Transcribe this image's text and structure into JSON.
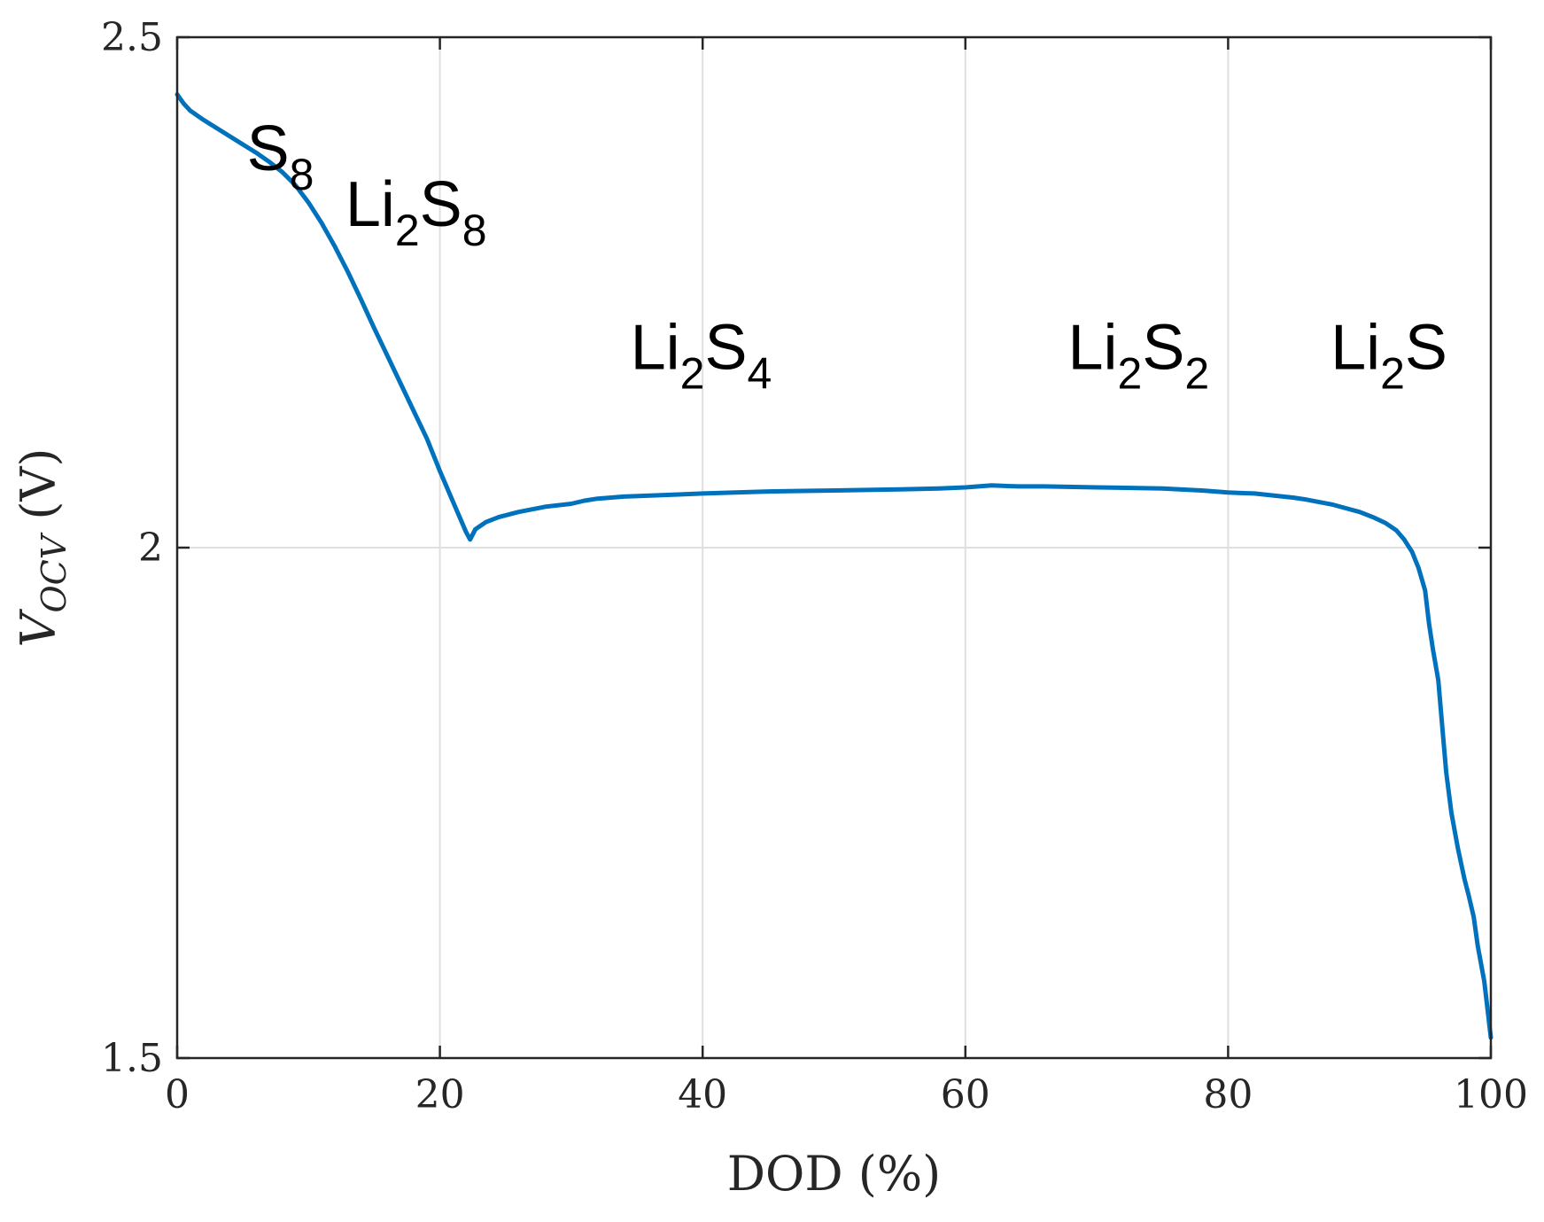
{
  "chart_data": {
    "type": "line",
    "title": "",
    "xlabel": "DOD (%)",
    "ylabel": {
      "main": "V",
      "subscript": "OCV",
      "unit": "(V)"
    },
    "xlim": [
      0,
      100
    ],
    "ylim": [
      1.5,
      2.5
    ],
    "x_ticks": [
      0,
      20,
      40,
      60,
      80,
      100
    ],
    "x_tick_labels": [
      "0",
      "20",
      "40",
      "60",
      "80",
      "100"
    ],
    "y_ticks": [
      1.5,
      2,
      2.5
    ],
    "y_tick_labels": [
      "1.5",
      "2",
      "2.5"
    ],
    "grid": true,
    "line_color": "#0072BD",
    "series": [
      {
        "x": [
          0,
          0.5,
          1,
          2,
          3,
          4,
          5,
          6,
          7,
          8,
          9,
          10,
          11,
          12,
          13,
          14,
          15,
          16,
          17,
          18,
          19,
          20,
          20.5,
          21,
          21.5,
          22,
          22.3,
          22.7,
          23.5,
          24.5,
          26,
          28,
          30,
          31,
          32,
          34,
          36,
          38,
          40,
          45,
          50,
          55,
          58,
          60,
          62,
          64,
          66,
          70,
          75,
          78,
          80,
          82,
          85,
          86,
          88,
          90,
          91,
          92,
          92.8,
          93.4,
          94,
          94.5,
          95,
          95.3,
          95.6,
          96,
          96.3,
          96.6,
          97,
          97.5,
          98,
          98.3,
          98.7,
          99,
          99.5,
          100
        ],
        "y": [
          2.444,
          2.435,
          2.428,
          2.419,
          2.411,
          2.403,
          2.395,
          2.387,
          2.378,
          2.368,
          2.355,
          2.338,
          2.318,
          2.295,
          2.27,
          2.243,
          2.215,
          2.188,
          2.161,
          2.134,
          2.107,
          2.075,
          2.06,
          2.045,
          2.03,
          2.015,
          2.008,
          2.018,
          2.025,
          2.03,
          2.035,
          2.04,
          2.043,
          2.046,
          2.048,
          2.05,
          2.051,
          2.052,
          2.053,
          2.055,
          2.056,
          2.057,
          2.058,
          2.059,
          2.061,
          2.06,
          2.06,
          2.059,
          2.058,
          2.056,
          2.054,
          2.053,
          2.049,
          2.047,
          2.042,
          2.035,
          2.03,
          2.024,
          2.017,
          2.008,
          1.996,
          1.98,
          1.958,
          1.925,
          1.9,
          1.87,
          1.825,
          1.78,
          1.74,
          1.705,
          1.675,
          1.66,
          1.638,
          1.61,
          1.575,
          1.52
        ]
      }
    ],
    "annotations": [
      {
        "id": "s8",
        "base": "S",
        "subscript": "8",
        "x": 5.3,
        "y": 2.37
      },
      {
        "id": "li2s8",
        "parts": [
          {
            "base": "Li",
            "subscript": "2"
          },
          {
            "base": "S",
            "subscript": "8"
          }
        ],
        "x": 12.8,
        "y": 2.315
      },
      {
        "id": "li2s4",
        "parts": [
          {
            "base": "Li",
            "subscript": "2"
          },
          {
            "base": "S",
            "subscript": "4"
          }
        ],
        "x": 34.5,
        "y": 2.175
      },
      {
        "id": "li2s2",
        "parts": [
          {
            "base": "Li",
            "subscript": "2"
          },
          {
            "base": "S",
            "subscript": "2"
          }
        ],
        "x": 67.8,
        "y": 2.175
      },
      {
        "id": "li2s",
        "parts": [
          {
            "base": "Li",
            "subscript": "2"
          },
          {
            "base": "S",
            "subscript": ""
          }
        ],
        "x": 87.8,
        "y": 2.175
      }
    ]
  }
}
